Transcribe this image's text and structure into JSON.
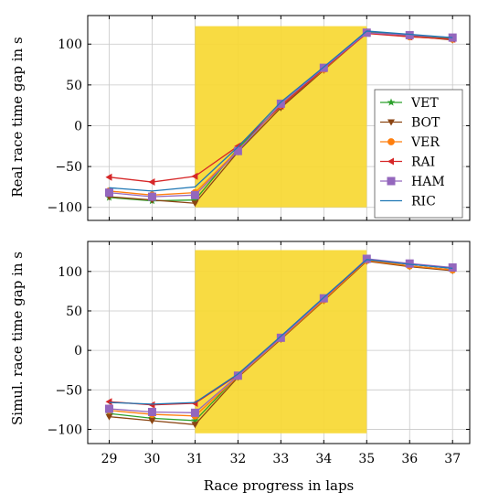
{
  "chart_data": [
    {
      "type": "line",
      "ylabel": "Real race time gap in s",
      "xlabel": "",
      "x": [
        29,
        30,
        31,
        32,
        33,
        34,
        35,
        36,
        37
      ],
      "xlim": [
        28.5,
        37.4
      ],
      "ylim": [
        -116,
        135
      ],
      "xticks": [
        29,
        30,
        31,
        32,
        33,
        34,
        35,
        36,
        37
      ],
      "yticks": [
        -100,
        -50,
        0,
        50,
        100
      ],
      "grid": true,
      "legend_position": "right",
      "highlight": {
        "x_from": 31,
        "x_to": 35,
        "y_from": -100,
        "y_to": 122,
        "color": "#f7d834"
      },
      "series": [
        {
          "name": "VET",
          "color": "#2ca02c",
          "marker": "star",
          "values": [
            -88,
            -92,
            -91,
            -28,
            26,
            70,
            115,
            111,
            107
          ]
        },
        {
          "name": "BOT",
          "color": "#8b4513",
          "marker": "tri-down",
          "values": [
            -87,
            -91,
            -95,
            -32,
            22,
            68,
            114,
            110,
            105
          ]
        },
        {
          "name": "VER",
          "color": "#ff7f0e",
          "marker": "circle",
          "values": [
            -80,
            -85,
            -82,
            -30,
            25,
            69,
            114,
            109,
            106
          ]
        },
        {
          "name": "RAI",
          "color": "#d62728",
          "marker": "tri-left",
          "values": [
            -63,
            -69,
            -62,
            -25,
            24,
            70,
            113,
            109,
            106
          ]
        },
        {
          "name": "HAM",
          "color": "#9467bd",
          "marker": "square",
          "values": [
            -82,
            -87,
            -85,
            -31,
            27,
            71,
            114,
            111,
            108
          ]
        },
        {
          "name": "RIC",
          "color": "#1f77b4",
          "marker": "none",
          "values": [
            -76,
            -80,
            -75,
            -26,
            29,
            72,
            116,
            112,
            108
          ]
        }
      ]
    },
    {
      "type": "line",
      "ylabel": "Simul. race time gap in s",
      "xlabel": "Race progress in laps",
      "x": [
        29,
        30,
        31,
        32,
        33,
        34,
        35,
        36,
        37
      ],
      "xlim": [
        28.5,
        37.4
      ],
      "ylim": [
        -118,
        138
      ],
      "xticks": [
        29,
        30,
        31,
        32,
        33,
        34,
        35,
        36,
        37
      ],
      "yticks": [
        -100,
        -50,
        0,
        50,
        100
      ],
      "grid": true,
      "highlight": {
        "x_from": 31,
        "x_to": 35,
        "y_from": -105,
        "y_to": 127,
        "color": "#f7d834"
      },
      "series": [
        {
          "name": "VET",
          "color": "#2ca02c",
          "marker": "star",
          "values": [
            -80,
            -86,
            -89,
            -32,
            16,
            65,
            114,
            107,
            102
          ]
        },
        {
          "name": "BOT",
          "color": "#8b4513",
          "marker": "tri-down",
          "values": [
            -84,
            -89,
            -94,
            -34,
            14,
            63,
            113,
            106,
            101
          ]
        },
        {
          "name": "VER",
          "color": "#ff7f0e",
          "marker": "circle",
          "values": [
            -76,
            -81,
            -83,
            -33,
            15,
            64,
            114,
            107,
            102
          ]
        },
        {
          "name": "RAI",
          "color": "#d62728",
          "marker": "tri-left",
          "values": [
            -65,
            -69,
            -67,
            -31,
            17,
            66,
            115,
            109,
            104
          ]
        },
        {
          "name": "HAM",
          "color": "#9467bd",
          "marker": "square",
          "values": [
            -74,
            -78,
            -79,
            -32,
            16,
            66,
            116,
            110,
            105
          ]
        },
        {
          "name": "RIC",
          "color": "#1f77b4",
          "marker": "none",
          "values": [
            -66,
            -68,
            -66,
            -30,
            18,
            67,
            115,
            109,
            104
          ]
        }
      ]
    }
  ]
}
